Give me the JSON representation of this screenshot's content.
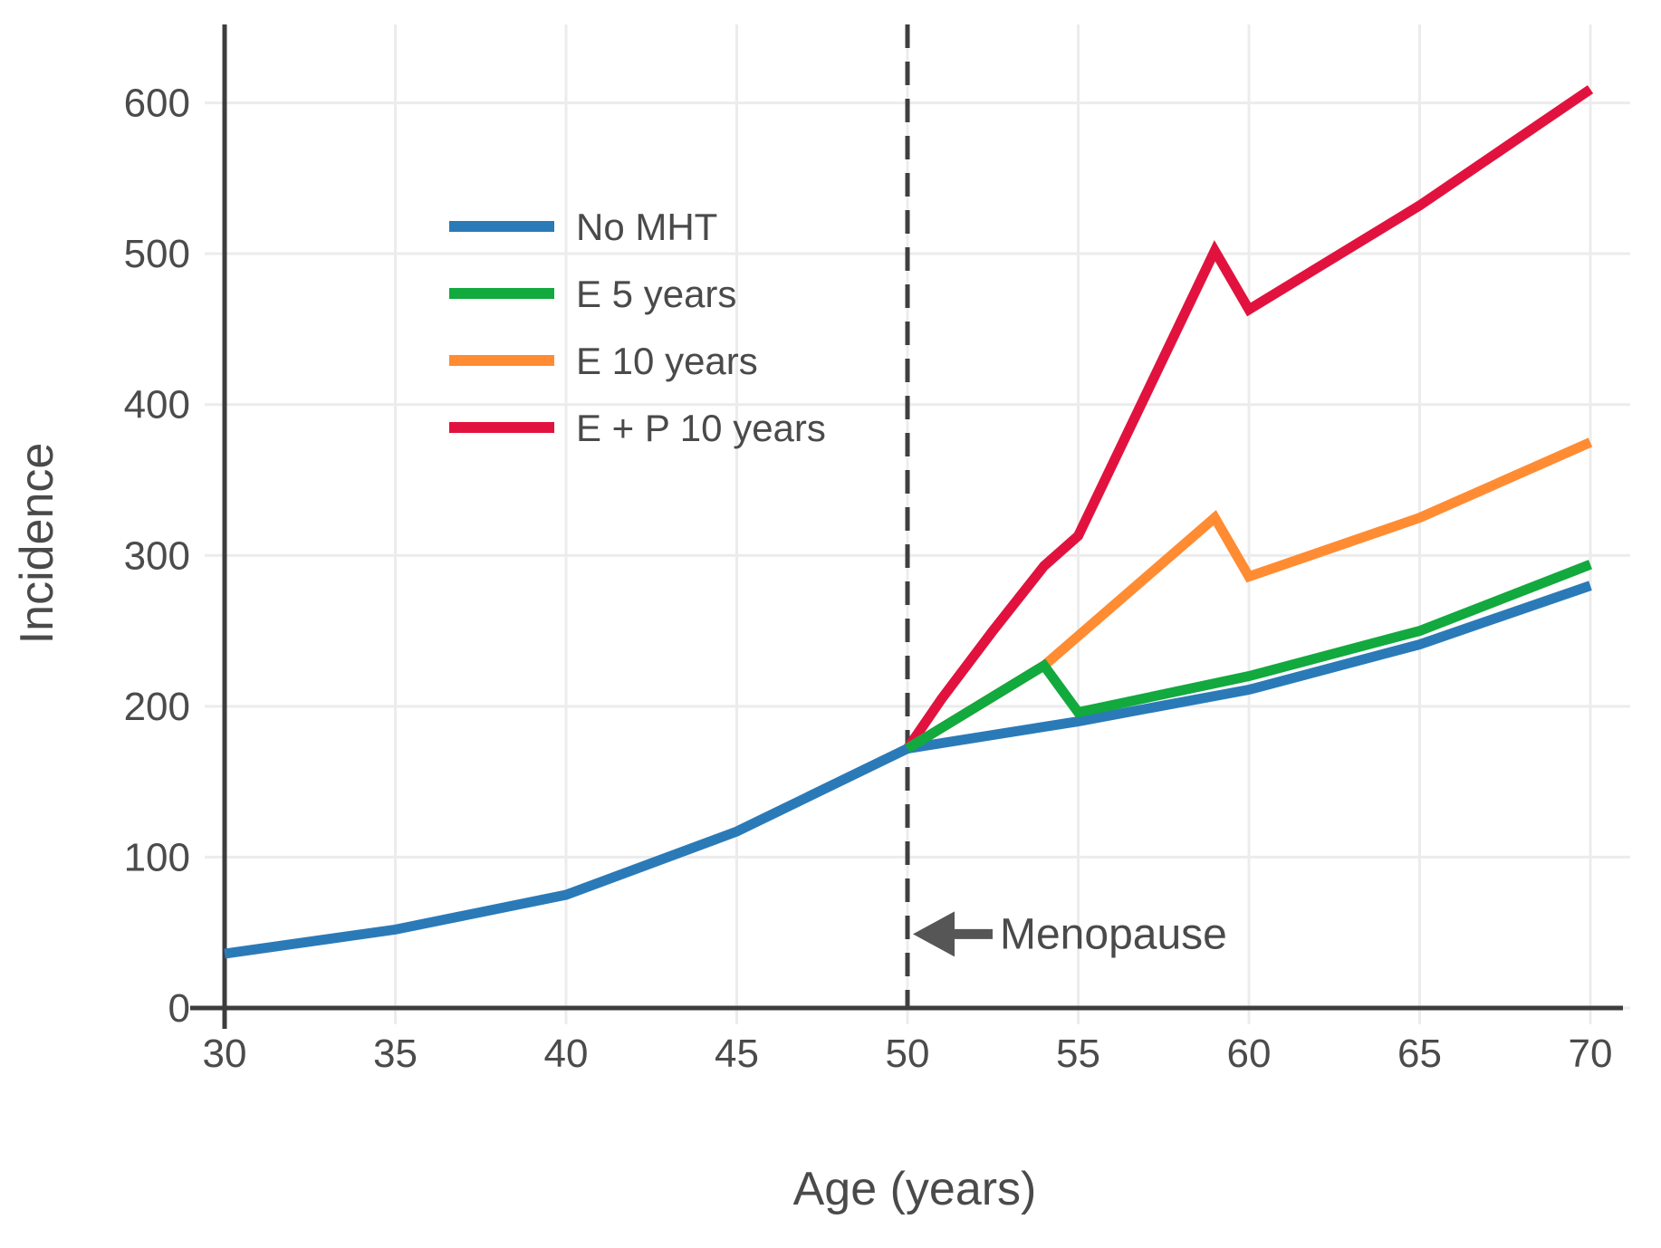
{
  "figure": {
    "background": "#ffffff"
  },
  "chart_data": {
    "type": "line",
    "title": "",
    "xlabel": "Age (years)",
    "ylabel": "Incidence",
    "xlim": [
      30,
      70
    ],
    "ylim": [
      0,
      652
    ],
    "xticks": [
      30,
      35,
      40,
      45,
      50,
      55,
      60,
      65,
      70
    ],
    "yticks": [
      0,
      100,
      200,
      300,
      400,
      500,
      600
    ],
    "grid": true,
    "legend_position": "upper-left-inside",
    "vline": {
      "x": 50,
      "style": "dashed",
      "color": "#3f3f3f"
    },
    "annotation": {
      "text": "Menopause",
      "arrow": "left",
      "x": 50,
      "y": 49
    },
    "series": [
      {
        "name": "No MHT",
        "color": "#2b7ab8",
        "points": [
          [
            30,
            36
          ],
          [
            35,
            52
          ],
          [
            40,
            75
          ],
          [
            45,
            117
          ],
          [
            50,
            172
          ],
          [
            55,
            190
          ],
          [
            60,
            211
          ],
          [
            65,
            241
          ],
          [
            70,
            280
          ]
        ]
      },
      {
        "name": "E 5 years",
        "color": "#12a93e",
        "points": [
          [
            50,
            172
          ],
          [
            54,
            227
          ],
          [
            55,
            196
          ],
          [
            60,
            220
          ],
          [
            65,
            250
          ],
          [
            70,
            294
          ]
        ]
      },
      {
        "name": "E 10 years",
        "color": "#ff8c33",
        "points": [
          [
            50,
            172
          ],
          [
            54,
            227
          ],
          [
            59,
            325
          ],
          [
            60,
            286
          ],
          [
            65,
            325
          ],
          [
            70,
            375
          ]
        ]
      },
      {
        "name": "E + P 10 years",
        "color": "#e2123f",
        "points": [
          [
            50,
            172
          ],
          [
            51,
            205
          ],
          [
            52.5,
            250
          ],
          [
            54,
            293
          ],
          [
            55,
            313
          ],
          [
            59,
            502
          ],
          [
            60,
            463
          ],
          [
            65,
            532
          ],
          [
            70,
            609
          ]
        ]
      }
    ],
    "colors": {
      "axis": "#3d3d3d",
      "grid": "#ececec",
      "tick_label": "#4b4b4b",
      "annotation": "#565656"
    }
  }
}
